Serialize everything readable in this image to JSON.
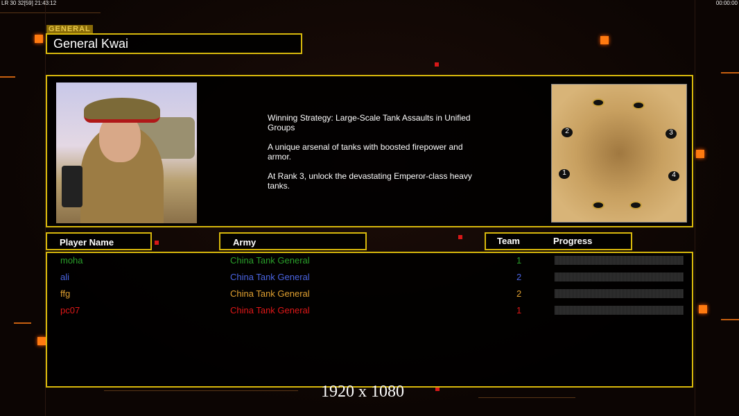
{
  "hud": {
    "left": "LR 30 32[59] 21:43:12",
    "right": "00:00:00"
  },
  "general": {
    "tag": "GENERAL",
    "name": "General Kwai",
    "description": [
      "Winning Strategy: Large-Scale Tank Assaults in Unified\n Groups",
      "A unique arsenal of tanks with boosted firepower and\n armor.",
      "At Rank 3, unlock the devastating Emperor-class heavy\n tanks."
    ]
  },
  "map": {
    "start_positions": [
      "1",
      "2",
      "3",
      "4"
    ]
  },
  "columns": {
    "player": "Player Name",
    "army": "Army",
    "team": "Team",
    "progress": "Progress"
  },
  "players": [
    {
      "name": "moha",
      "army": "China Tank General",
      "team": "1",
      "color": "#2aa02a",
      "progress": 0
    },
    {
      "name": "ali",
      "army": "China Tank General",
      "team": "2",
      "color": "#4a64e0",
      "progress": 0
    },
    {
      "name": "ffg",
      "army": "China Tank General",
      "team": "2",
      "color": "#e0a030",
      "progress": 0
    },
    {
      "name": "pc07",
      "army": "China Tank General",
      "team": "1",
      "color": "#e01818",
      "progress": 0
    }
  ],
  "resolution": "1920 x 1080"
}
